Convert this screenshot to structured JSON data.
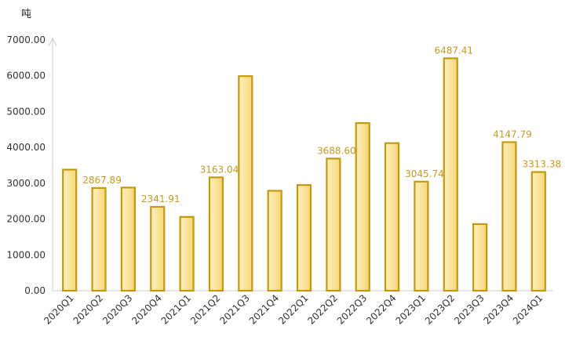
{
  "chart_data": {
    "type": "bar",
    "title": "",
    "xlabel": "",
    "ylabel": "吨",
    "ylim": [
      0,
      7000
    ],
    "yticks": [
      0,
      1000,
      2000,
      3000,
      4000,
      5000,
      6000,
      7000
    ],
    "ytick_labels": [
      "0.00",
      "1000.00",
      "2000.00",
      "3000.00",
      "4000.00",
      "5000.00",
      "6000.00",
      "7000.00"
    ],
    "grid": false,
    "legend": "none",
    "categories": [
      "2020Q1",
      "2020Q2",
      "2020Q3",
      "2020Q4",
      "2021Q1",
      "2021Q2",
      "2021Q3",
      "2021Q4",
      "2022Q1",
      "2022Q2",
      "2022Q3",
      "2022Q4",
      "2023Q1",
      "2023Q2",
      "2023Q3",
      "2023Q4",
      "2024Q1"
    ],
    "values": [
      3380,
      2867.89,
      2880,
      2341.91,
      2060,
      3163.04,
      5990,
      2790,
      2950,
      3688.6,
      4680,
      4120,
      3045.74,
      6487.41,
      1860,
      4147.79,
      3313.38
    ],
    "data_labels": [
      null,
      "2867.89",
      null,
      "2341.91",
      null,
      "3163.04",
      null,
      null,
      null,
      "3688.60",
      null,
      null,
      "3045.74",
      "6487.41",
      null,
      "4147.79",
      "3313.38"
    ]
  },
  "colors": {
    "bar_fill": "#fbe39a",
    "bar_stroke": "#c49a0c",
    "label": "#c89a1a",
    "axis": "#cccccc"
  }
}
